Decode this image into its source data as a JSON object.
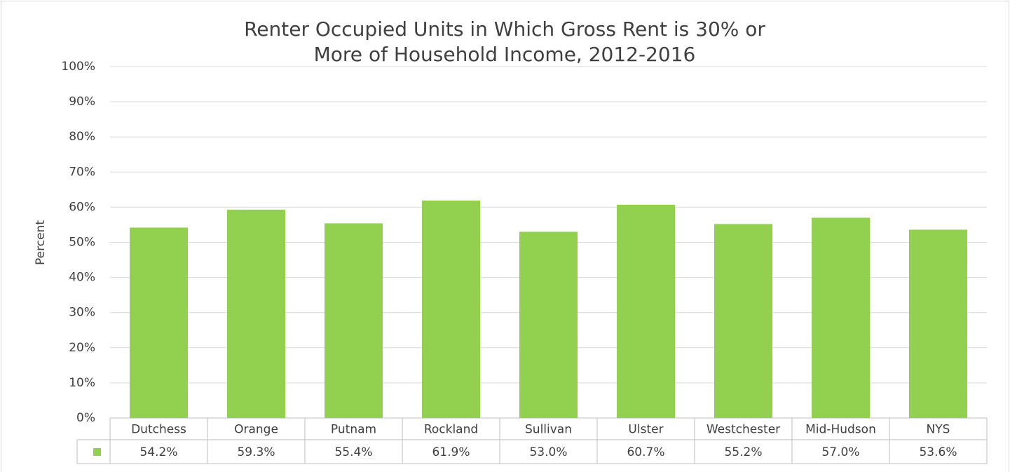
{
  "chart_data": {
    "type": "bar",
    "title": "Renter Occupied Units in Which Gross Rent is 30% or More of Household Income, 2012-2016",
    "y_label": "Percent",
    "categories": [
      "Dutchess",
      "Orange",
      "Putnam",
      "Rockland",
      "Sullivan",
      "Ulster",
      "Westchester",
      "Mid-Hudson",
      "NYS"
    ],
    "values": [
      54.2,
      59.3,
      55.4,
      61.9,
      53.0,
      60.7,
      55.2,
      57.0,
      53.6
    ],
    "value_labels": [
      "54.2%",
      "59.3%",
      "55.4%",
      "61.9%",
      "53.0%",
      "60.7%",
      "55.2%",
      "57.0%",
      "53.6%"
    ],
    "color": "#92d050",
    "ylim": [
      0,
      100
    ],
    "yticks": [
      {
        "value": 0,
        "label": "0%"
      },
      {
        "value": 10,
        "label": "10%"
      },
      {
        "value": 20,
        "label": "20%"
      },
      {
        "value": 30,
        "label": "30%"
      },
      {
        "value": 40,
        "label": "40%"
      },
      {
        "value": 50,
        "label": "50%"
      },
      {
        "value": 60,
        "label": "60%"
      },
      {
        "value": 70,
        "label": "70%"
      },
      {
        "value": 80,
        "label": "80%"
      },
      {
        "value": 90,
        "label": "90%"
      },
      {
        "value": 100,
        "label": "100%"
      }
    ],
    "grid": true
  }
}
